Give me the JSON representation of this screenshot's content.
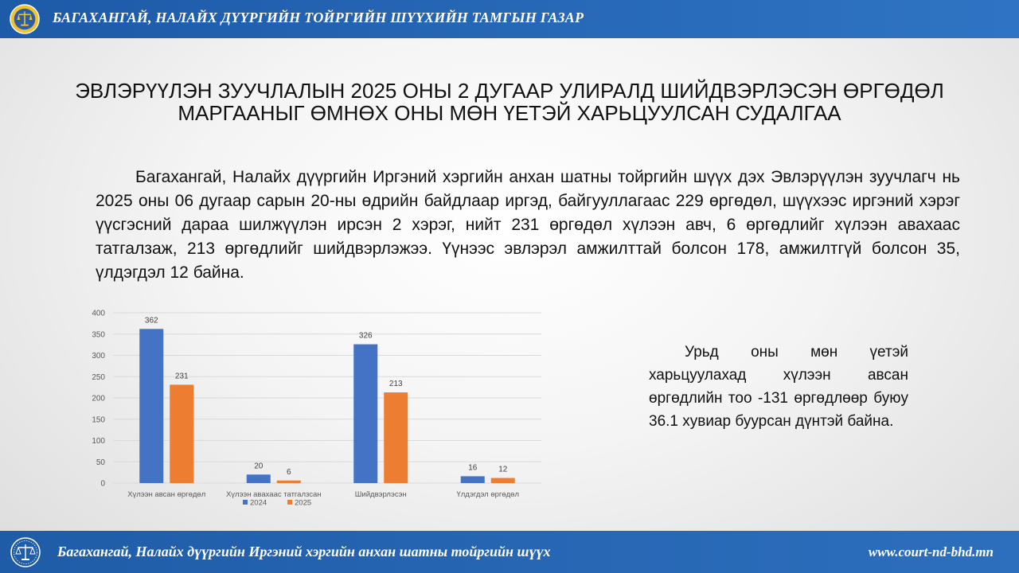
{
  "header": {
    "title": "БАГАХАНГАЙ, НАЛАЙХ ДҮҮРГИЙН ТОЙРГИЙН ШҮҮХИЙН ТАМГЫН ГАЗАР",
    "logo_icon": "court-emblem-icon"
  },
  "page_title": "ЭВЛЭРҮҮЛЭН ЗУУЧЛАЛЫН 2025 ОНЫ 2 ДУГААР УЛИРАЛД ШИЙДВЭРЛЭСЭН ӨРГӨДӨЛ МАРГААНЫГ ӨМНӨХ ОНЫ МӨН ҮЕТЭЙ ХАРЬЦУУЛСАН СУДАЛГАА",
  "body_text": "Багахангай, Налайх дүүргийн Иргэний хэргийн анхан шатны тойргийн шүүх дэх Эвлэрүүлэн зуучлагч нь 2025 оны 06 дугаар сарын 20-ны өдрийн байдлаар иргэд, байгууллагаас 229 өргөдөл, шүүхээс иргэний хэрэг үүсгэсний дараа шилжүүлэн ирсэн 2 хэрэг, нийт 231 өргөдөл хүлээн авч, 6 өргөдлийг хүлээн авахаас татгалзаж, 213 өргөдлийг шийдвэрлэжээ. Үүнээс эвлэрэл амжилттай болсон 178, амжилтгүй болсон 35, үлдэгдэл  12 байна.",
  "side_text": "Урьд оны мөн үетэй харьцуулахад хүлээн авсан өргөдлийн тоо -131 өргөдлөөр буюу 36.1 хувиар буурсан дүнтэй байна.",
  "chart_data": {
    "type": "bar",
    "categories": [
      "Хүлээн  авсан өргөдөл",
      "Хүлээн  авахаас татгалзсан",
      "Шийдвэрлэсэн",
      "Үлдэгдэл өргөдөл"
    ],
    "series": [
      {
        "name": "2024",
        "values": [
          362,
          20,
          326,
          16
        ],
        "color": "#4472c4"
      },
      {
        "name": "2025",
        "values": [
          231,
          6,
          213,
          12
        ],
        "color": "#ed7d31"
      }
    ],
    "ylim": [
      0,
      400
    ],
    "yticks": [
      0,
      50,
      100,
      150,
      200,
      250,
      300,
      350,
      400
    ],
    "grid": true,
    "legend": "bottom",
    "data_labels": true
  },
  "footer": {
    "left_text": "Багахангай, Налайх дүүргийн Иргэний хэргийн анхан шатны тойргийн шүүх",
    "right_text": "www.court-nd-bhd.mn",
    "logo_icon": "scales-of-justice-icon"
  }
}
